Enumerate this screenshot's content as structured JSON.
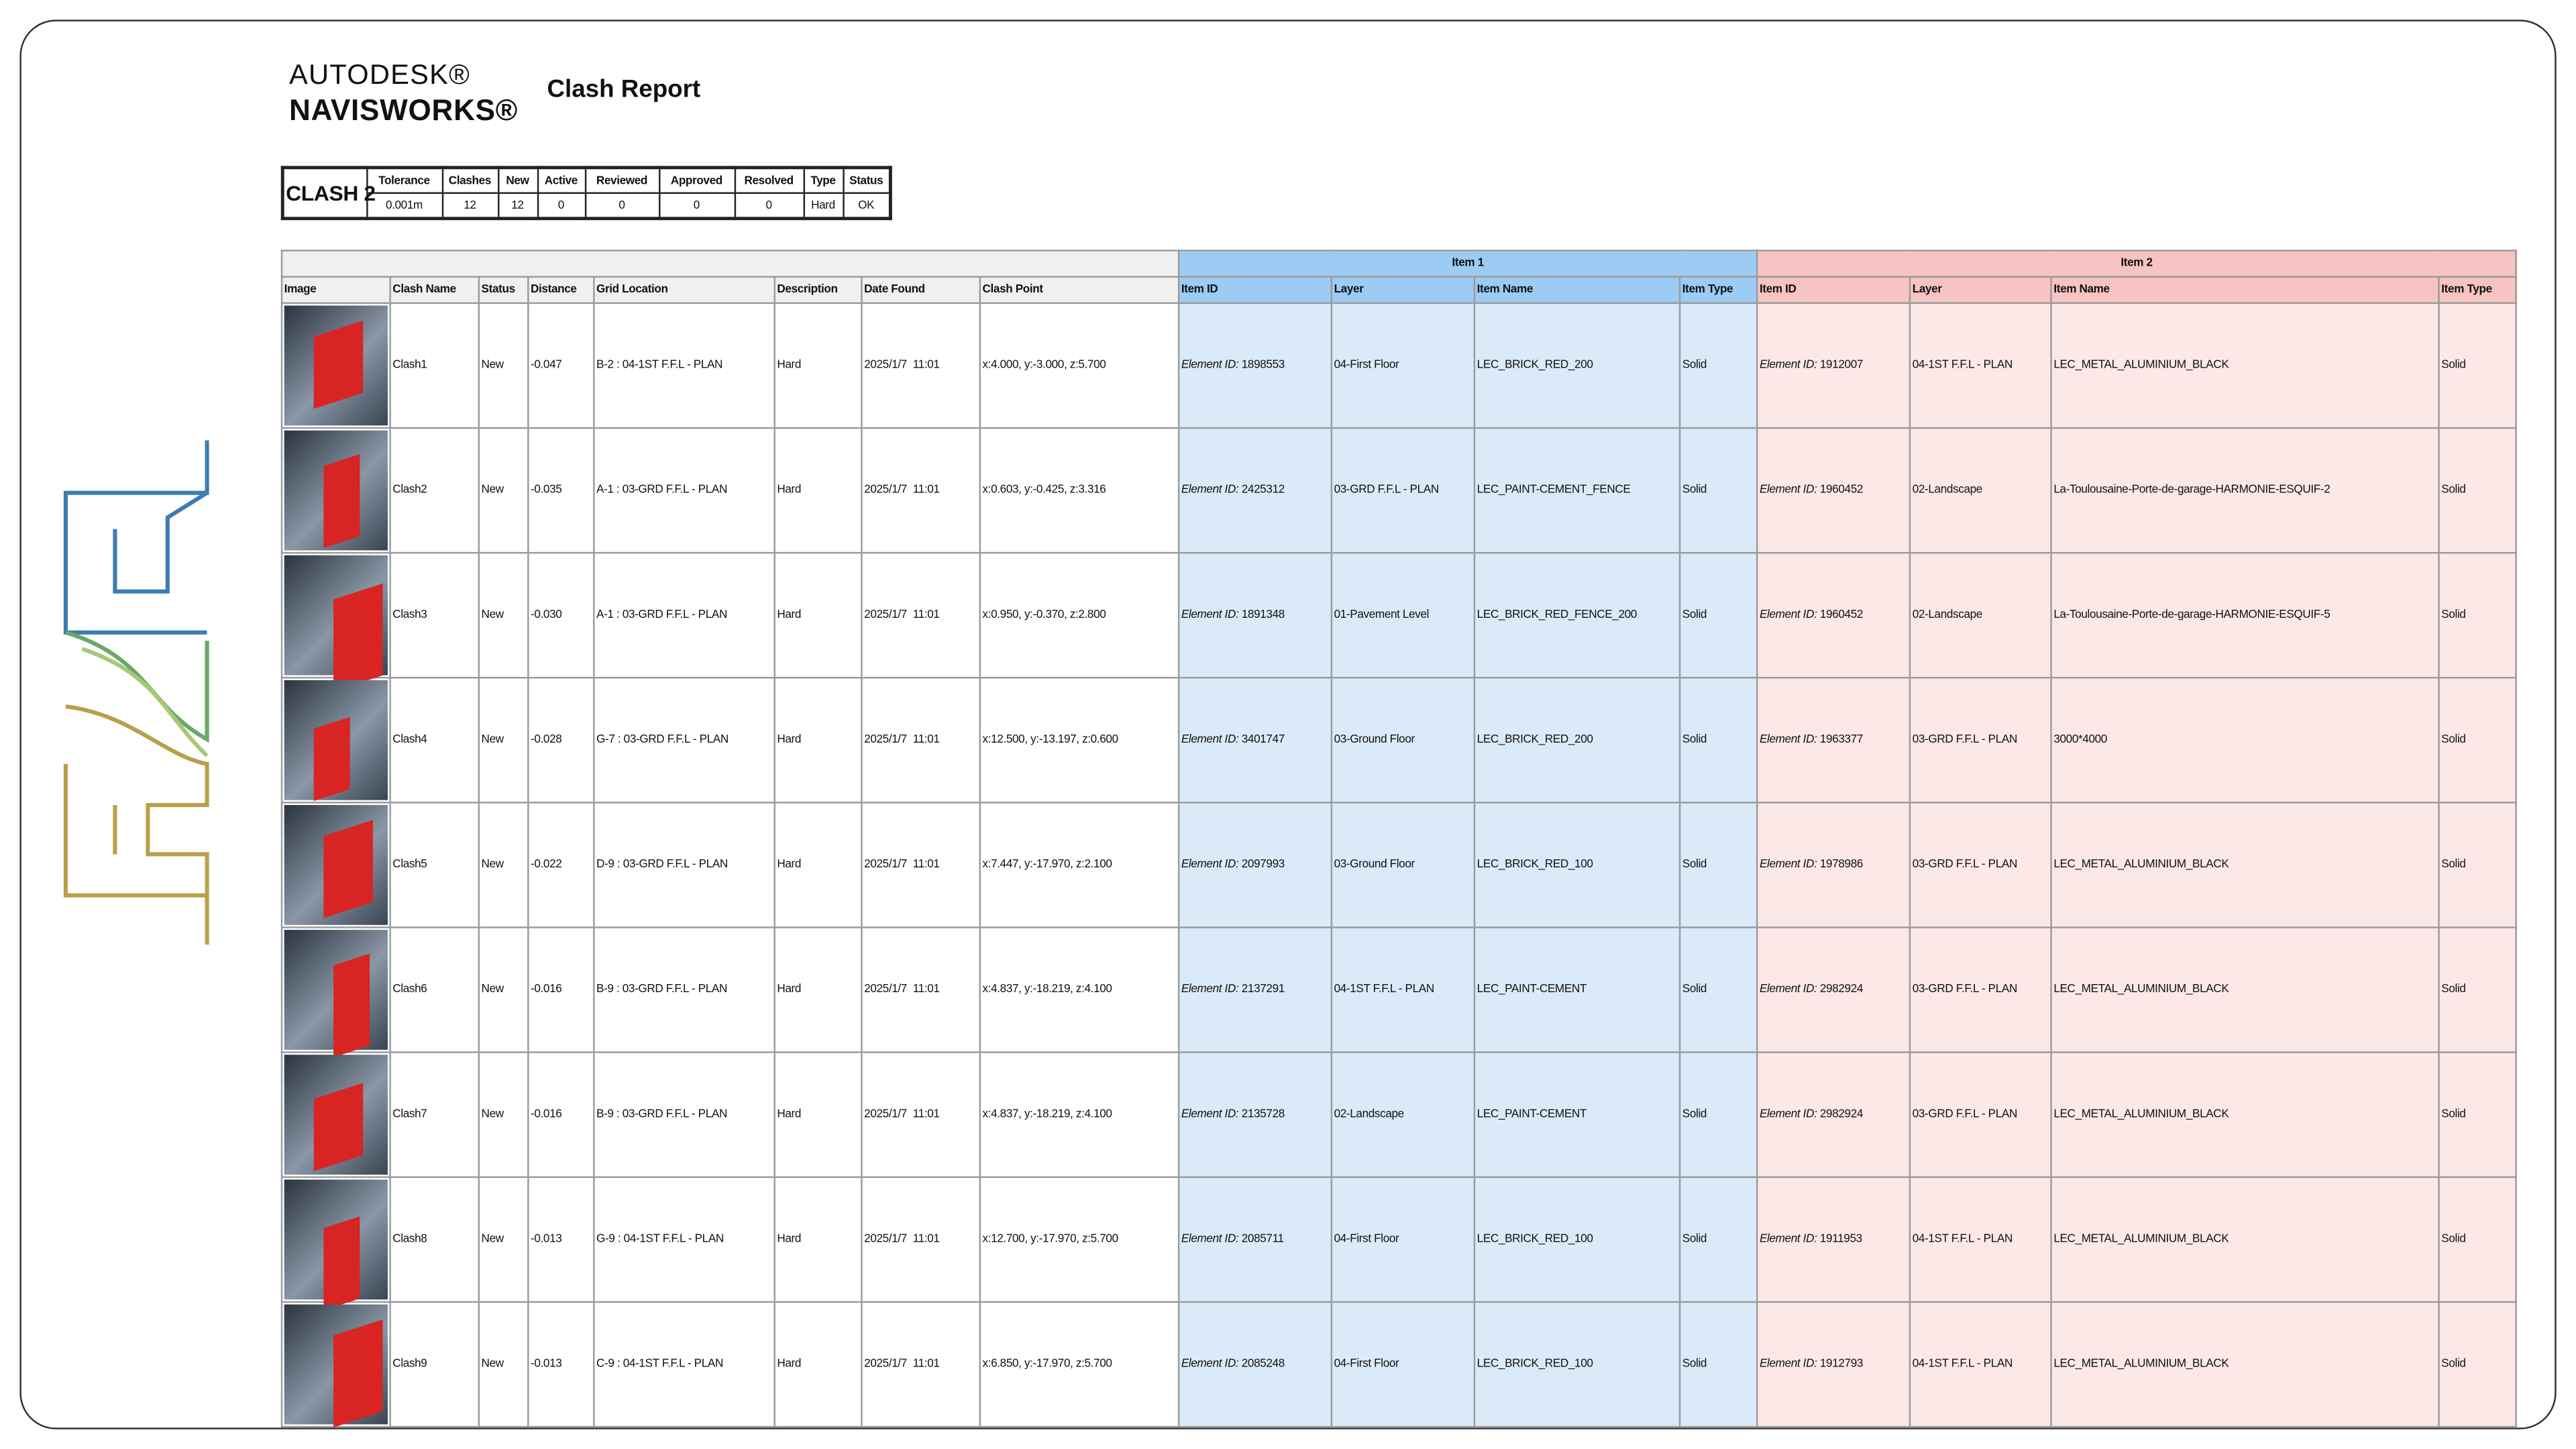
{
  "header": {
    "brand_top": "AUTODESK®",
    "brand_bottom": "NAVISWORKS®",
    "title": "Clash Report"
  },
  "summary": {
    "test_name": "CLASH 2",
    "headers": [
      "Tolerance",
      "Clashes",
      "New",
      "Active",
      "Reviewed",
      "Approved",
      "Resolved",
      "Type",
      "Status"
    ],
    "values": [
      "0.001m",
      "12",
      "12",
      "0",
      "0",
      "0",
      "0",
      "Hard",
      "OK"
    ]
  },
  "table": {
    "groups": [
      "Item 1",
      "Item 2"
    ],
    "element_id_label": "Element ID:",
    "columns": [
      "Image",
      "Clash Name",
      "Status",
      "Distance",
      "Grid Location",
      "Description",
      "Date Found",
      "Clash Point",
      "Item ID",
      "Layer",
      "Item Name",
      "Item Type",
      "Item ID",
      "Layer",
      "Item Name",
      "Item Type"
    ],
    "rows": [
      [
        "Clash1",
        "New",
        "-0.047",
        "B-2 : 04-1ST F.F.L - PLAN",
        "Hard",
        "2025/1/7  11:01",
        "x:4.000, y:-3.000, z:5.700",
        "1898553",
        "04-First Floor",
        "LEC_BRICK_RED_200",
        "Solid",
        "1912007",
        "04-1ST F.F.L - PLAN",
        "LEC_METAL_ALUMINIUM_BLACK",
        "Solid"
      ],
      [
        "Clash2",
        "New",
        "-0.035",
        "A-1 : 03-GRD F.F.L - PLAN",
        "Hard",
        "2025/1/7  11:01",
        "x:0.603, y:-0.425, z:3.316",
        "2425312",
        "03-GRD F.F.L - PLAN",
        "LEC_PAINT-CEMENT_FENCE",
        "Solid",
        "1960452",
        "02-Landscape",
        "La-Toulousaine-Porte-de-garage-HARMONIE-ESQUIF-2",
        "Solid"
      ],
      [
        "Clash3",
        "New",
        "-0.030",
        "A-1 : 03-GRD F.F.L - PLAN",
        "Hard",
        "2025/1/7  11:01",
        "x:0.950, y:-0.370, z:2.800",
        "1891348",
        "01-Pavement Level",
        "LEC_BRICK_RED_FENCE_200",
        "Solid",
        "1960452",
        "02-Landscape",
        "La-Toulousaine-Porte-de-garage-HARMONIE-ESQUIF-5",
        "Solid"
      ],
      [
        "Clash4",
        "New",
        "-0.028",
        "G-7 : 03-GRD F.F.L - PLAN",
        "Hard",
        "2025/1/7  11:01",
        "x:12.500, y:-13.197, z:0.600",
        "3401747",
        "03-Ground Floor",
        "LEC_BRICK_RED_200",
        "Solid",
        "1963377",
        "03-GRD F.F.L - PLAN",
        "3000*4000",
        "Solid"
      ],
      [
        "Clash5",
        "New",
        "-0.022",
        "D-9 : 03-GRD F.F.L - PLAN",
        "Hard",
        "2025/1/7  11:01",
        "x:7.447, y:-17.970, z:2.100",
        "2097993",
        "03-Ground Floor",
        "LEC_BRICK_RED_100",
        "Solid",
        "1978986",
        "03-GRD F.F.L - PLAN",
        "LEC_METAL_ALUMINIUM_BLACK",
        "Solid"
      ],
      [
        "Clash6",
        "New",
        "-0.016",
        "B-9 : 03-GRD F.F.L - PLAN",
        "Hard",
        "2025/1/7  11:01",
        "x:4.837, y:-18.219, z:4.100",
        "2137291",
        "04-1ST F.F.L - PLAN",
        "LEC_PAINT-CEMENT",
        "Solid",
        "2982924",
        "03-GRD F.F.L - PLAN",
        "LEC_METAL_ALUMINIUM_BLACK",
        "Solid"
      ],
      [
        "Clash7",
        "New",
        "-0.016",
        "B-9 : 03-GRD F.F.L - PLAN",
        "Hard",
        "2025/1/7  11:01",
        "x:4.837, y:-18.219, z:4.100",
        "2135728",
        "02-Landscape",
        "LEC_PAINT-CEMENT",
        "Solid",
        "2982924",
        "03-GRD F.F.L - PLAN",
        "LEC_METAL_ALUMINIUM_BLACK",
        "Solid"
      ],
      [
        "Clash8",
        "New",
        "-0.013",
        "G-9 : 04-1ST F.F.L - PLAN",
        "Hard",
        "2025/1/7  11:01",
        "x:12.700, y:-17.970, z:5.700",
        "2085711",
        "04-First Floor",
        "LEC_BRICK_RED_100",
        "Solid",
        "1911953",
        "04-1ST F.F.L - PLAN",
        "LEC_METAL_ALUMINIUM_BLACK",
        "Solid"
      ],
      [
        "Clash9",
        "New",
        "-0.013",
        "C-9 : 04-1ST F.F.L - PLAN",
        "Hard",
        "2025/1/7  11:01",
        "x:6.850, y:-17.970, z:5.700",
        "2085248",
        "04-First Floor",
        "LEC_BRICK_RED_100",
        "Solid",
        "1912793",
        "04-1ST F.F.L - PLAN",
        "LEC_METAL_ALUMINIUM_BLACK",
        "Solid"
      ]
    ]
  }
}
